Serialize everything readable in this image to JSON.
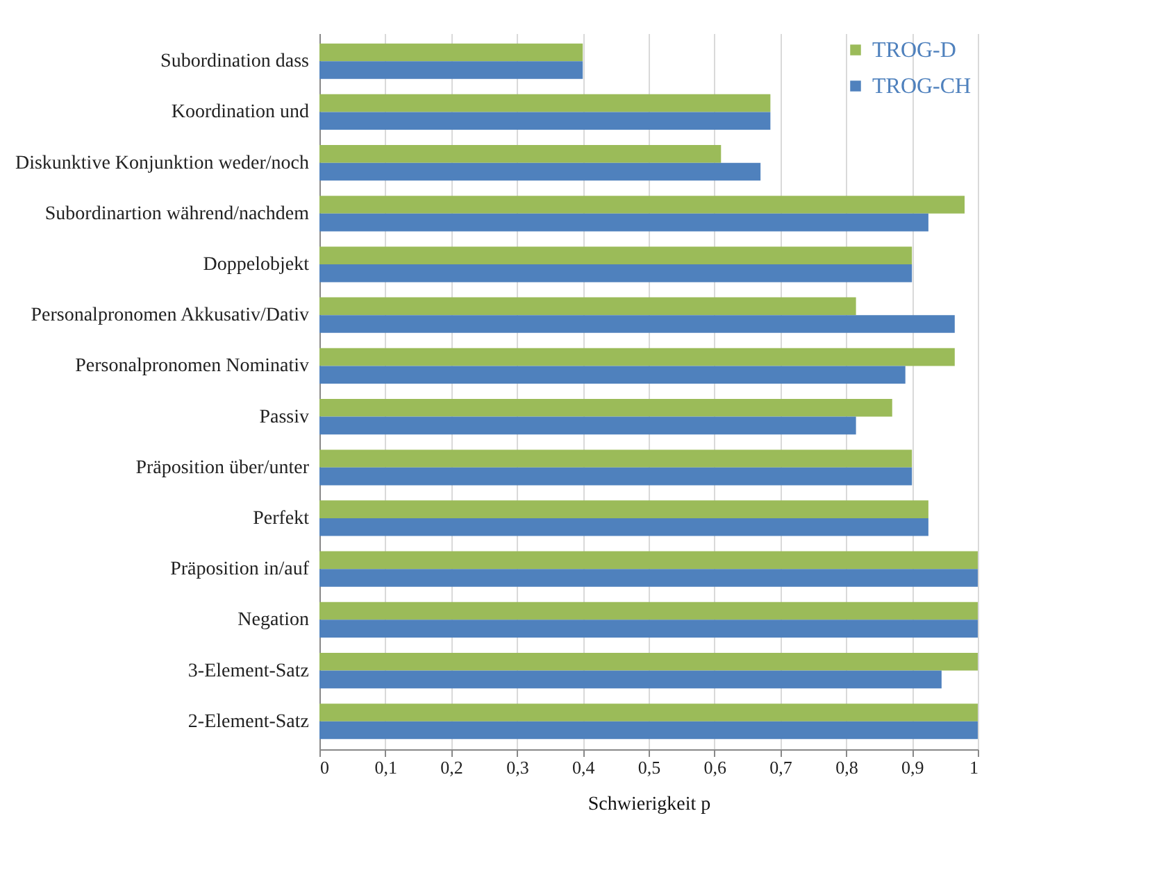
{
  "chart_data": {
    "type": "bar",
    "orientation": "horizontal",
    "xlabel": "Schwierigkeit p",
    "categories": [
      "Subordination dass",
      "Koordination und",
      "Diskunktive Konjunktion weder/noch",
      "Subordinartion während/nachdem",
      "Doppelobjekt",
      "Personalpronomen Akkusativ/Dativ",
      "Personalpronomen Nominativ",
      "Passiv",
      "Präposition über/unter",
      "Perfekt",
      "Präposition in/auf",
      "Negation",
      "3-Element-Satz",
      "2-Element-Satz"
    ],
    "series": [
      {
        "name": "TROG-D",
        "color": "#9bbb59",
        "values": [
          0.4,
          0.685,
          0.61,
          0.98,
          0.9,
          0.815,
          0.965,
          0.87,
          0.9,
          0.925,
          1,
          1,
          1,
          1
        ]
      },
      {
        "name": "TROG-CH",
        "color": "#4f81bd",
        "values": [
          0.4,
          0.685,
          0.67,
          0.925,
          0.9,
          0.965,
          0.89,
          0.815,
          0.9,
          0.925,
          1,
          1,
          0.945,
          1
        ]
      }
    ],
    "xlim": [
      0,
      1
    ],
    "xticks": [
      0,
      {
        "value": 0.1,
        "label": "0,1"
      },
      {
        "value": 0.2,
        "label": "0,2"
      },
      {
        "value": 0.3,
        "label": "0,3"
      },
      {
        "value": 0.4,
        "label": "0,4"
      },
      {
        "value": 0.5,
        "label": "0,5"
      },
      {
        "value": 0.6,
        "label": "0,6"
      },
      {
        "value": 0.7,
        "label": "0,7"
      },
      {
        "value": 0.8,
        "label": "0,8"
      },
      {
        "value": 0.9,
        "label": "0,9"
      },
      1
    ],
    "grid": "x",
    "legend": "top right"
  }
}
